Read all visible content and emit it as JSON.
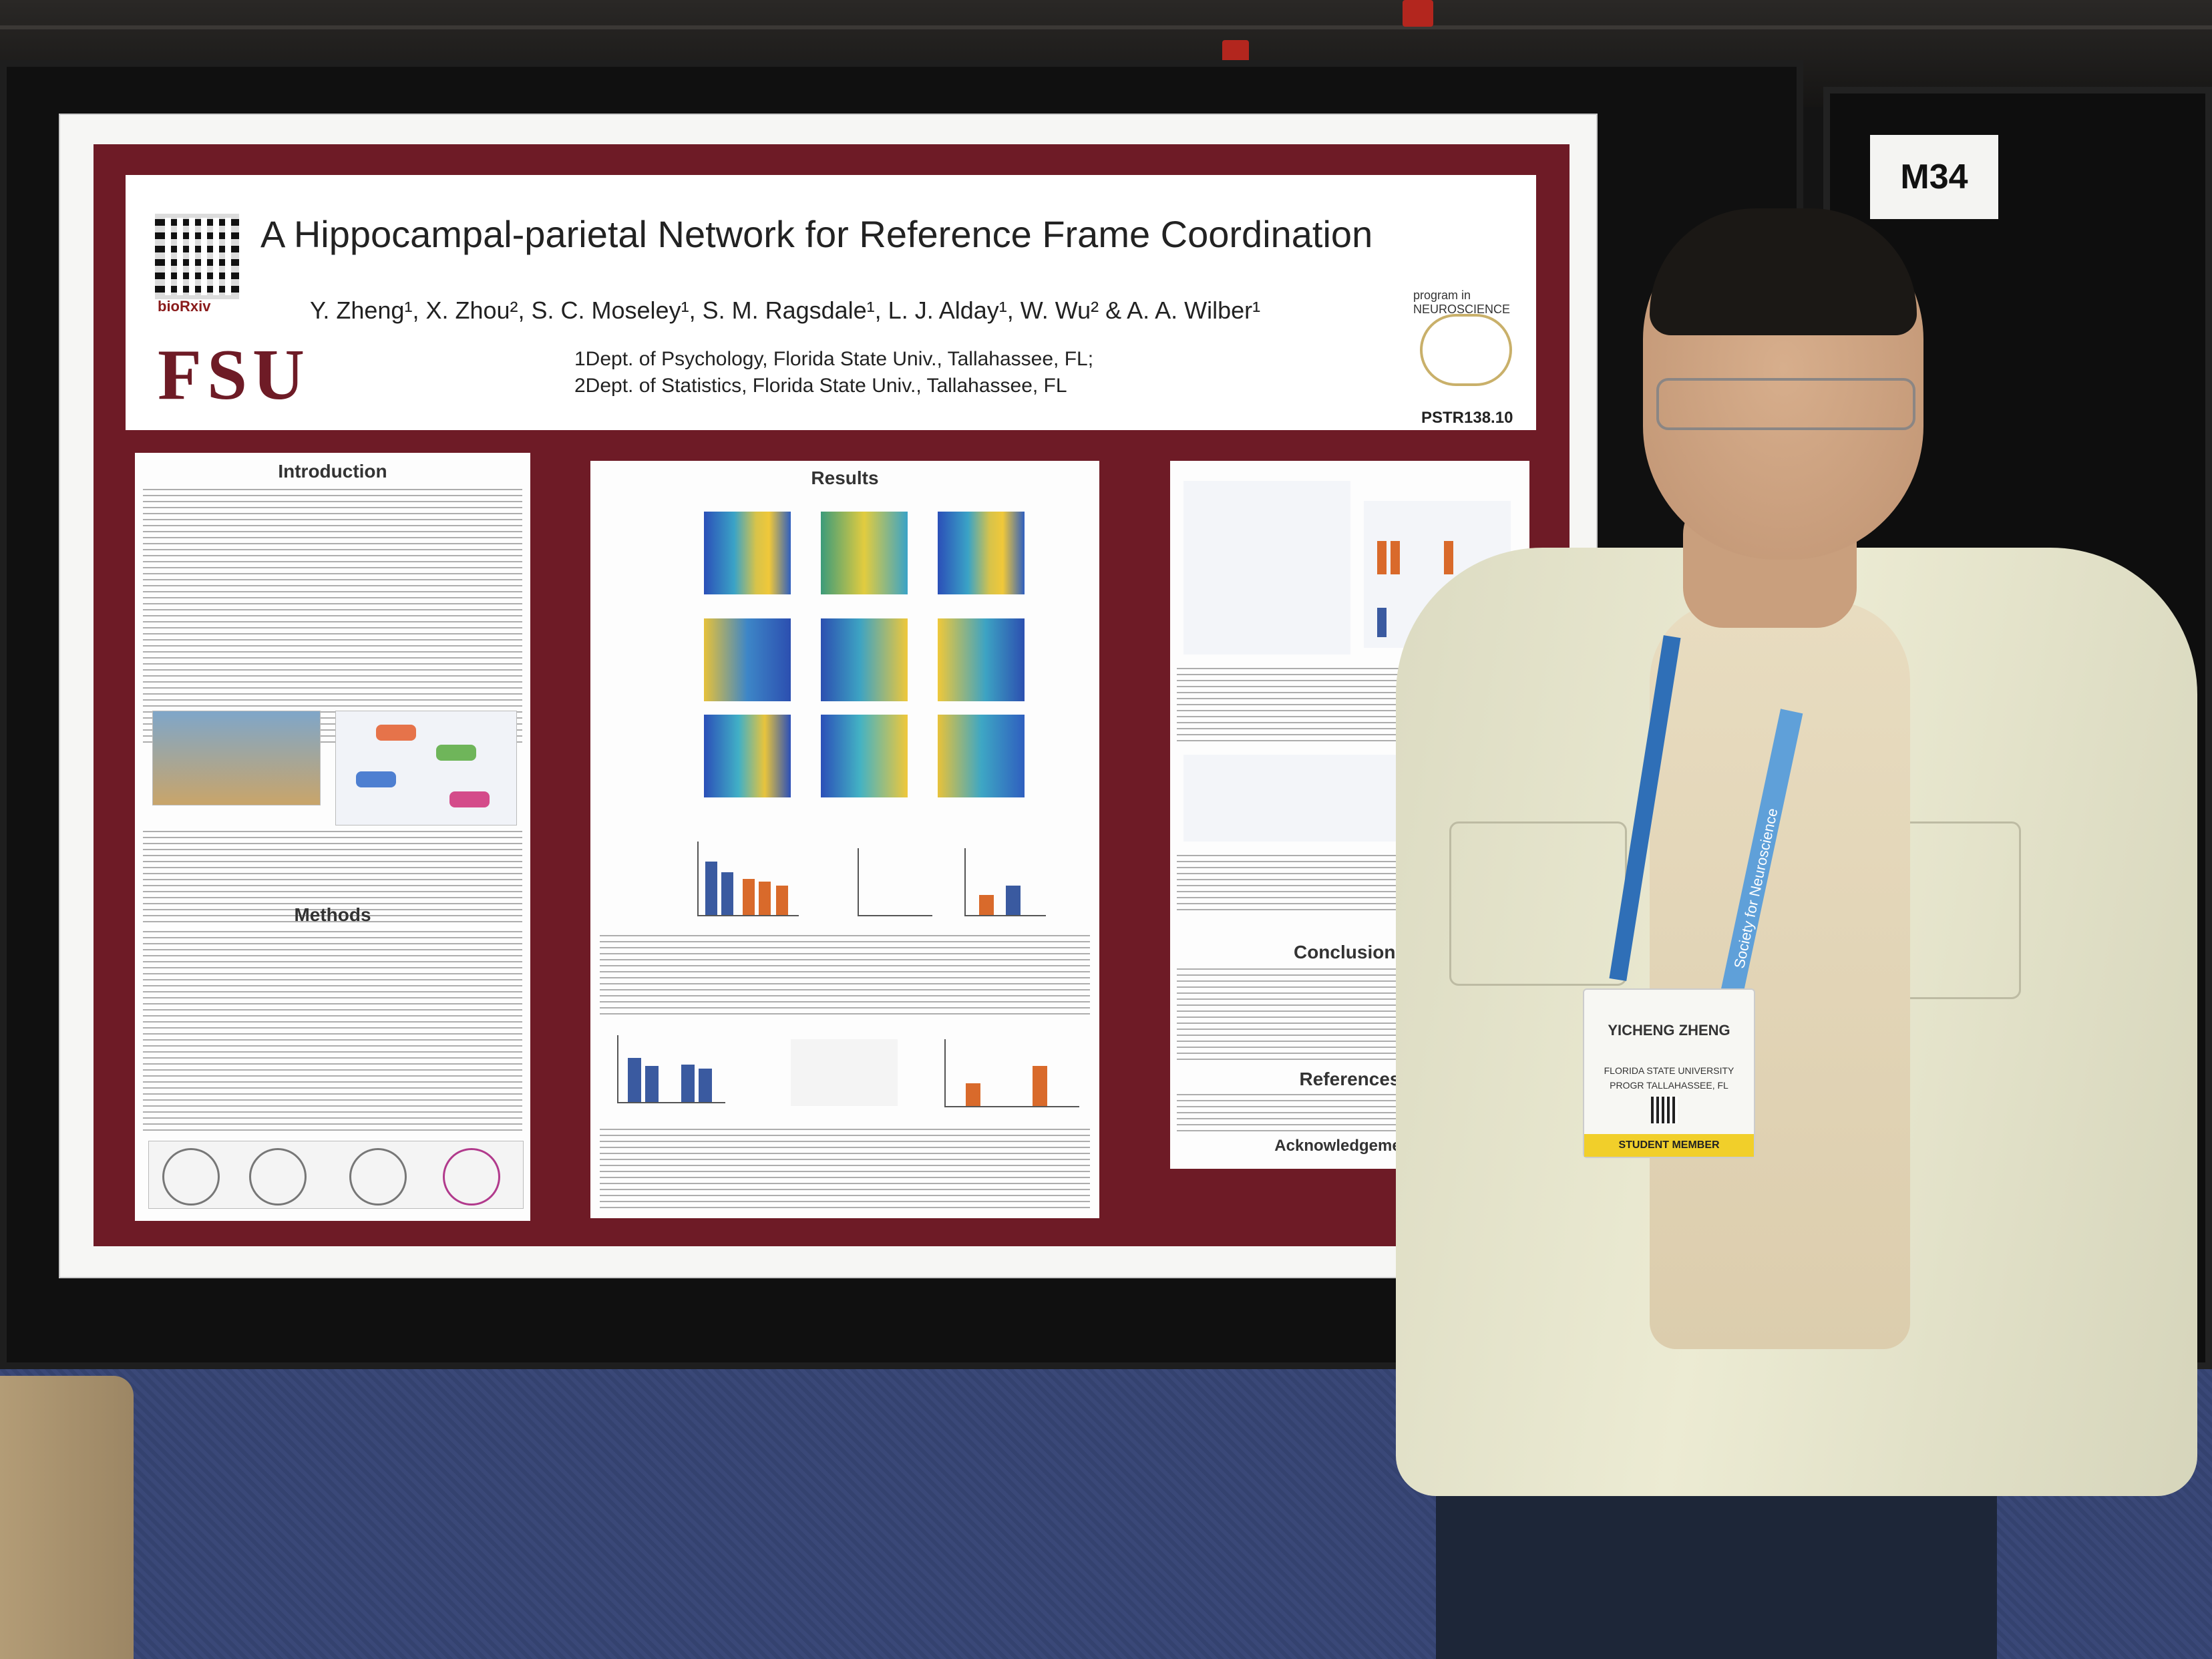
{
  "booth": {
    "label": "M34"
  },
  "poster": {
    "title": "A Hippocampal-parietal Network for Reference Frame Coordination",
    "authors": "Y. Zheng¹, X. Zhou², S. C. Moseley¹, S. M. Ragsdale¹, L. J. Alday¹, W. Wu² & A. A. Wilber¹",
    "affiliations": "1Dept. of Psychology, Florida State Univ., Tallahassee, FL;\n2Dept. of Statistics, Florida State Univ., Tallahassee, FL",
    "logo_text": "FSU",
    "qr_caption": "bioRxiv",
    "program": "program in NEUROSCIENCE",
    "poster_id": "PSTR138.10",
    "sections": {
      "introduction": "Introduction",
      "methods": "Methods",
      "results": "Results",
      "conclusions": "Conclusions",
      "references": "References",
      "acknowledgements": "Acknowledgements"
    }
  },
  "badge": {
    "name": "YICHENG ZHENG",
    "affiliation": "FLORIDA STATE UNIVERSITY PROGR TALLAHASSEE, FL",
    "type": "STUDENT MEMBER",
    "lanyard_text": "Society for Neuroscience"
  },
  "colors": {
    "poster_border": "#6e1b26",
    "badge_strip": "#f1cf2a",
    "jacket": "#e6e4cc",
    "carpet": "#3a4878"
  }
}
